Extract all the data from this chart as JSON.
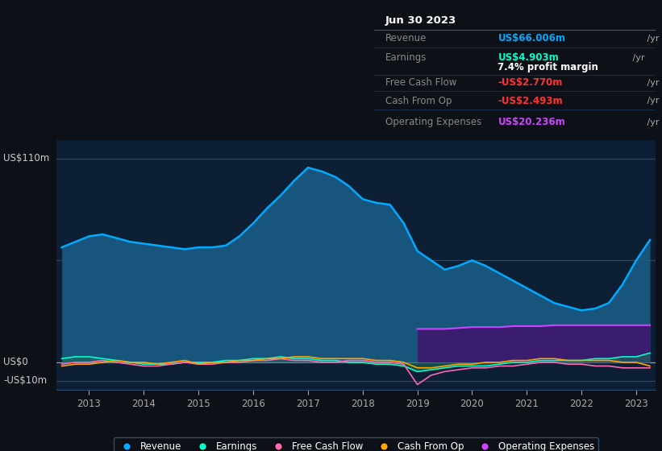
{
  "bg_color": "#0d1117",
  "plot_bg_color": "#0d1f35",
  "title_date": "Jun 30 2023",
  "info_box": {
    "Revenue": {
      "value": "US$66.006m",
      "color": "#00aaff"
    },
    "Earnings": {
      "value": "US$4.903m",
      "color": "#00ffcc"
    },
    "profit_margin": "7.4% profit margin",
    "Free Cash Flow": {
      "value": "-US$2.770m",
      "color": "#ff3333"
    },
    "Cash From Op": {
      "value": "-US$2.493m",
      "color": "#ff3333"
    },
    "Operating Expenses": {
      "value": "US$20.236m",
      "color": "#cc44ff"
    }
  },
  "years": [
    2012.5,
    2012.75,
    2013.0,
    2013.25,
    2013.5,
    2013.75,
    2014.0,
    2014.25,
    2014.5,
    2014.75,
    2015.0,
    2015.25,
    2015.5,
    2015.75,
    2016.0,
    2016.25,
    2016.5,
    2016.75,
    2017.0,
    2017.25,
    2017.5,
    2017.75,
    2018.0,
    2018.25,
    2018.5,
    2018.75,
    2019.0,
    2019.25,
    2019.5,
    2019.75,
    2020.0,
    2020.25,
    2020.5,
    2020.75,
    2021.0,
    2021.25,
    2021.5,
    2021.75,
    2022.0,
    2022.25,
    2022.5,
    2022.75,
    2023.0,
    2023.25
  ],
  "revenue": [
    62,
    65,
    68,
    69,
    67,
    65,
    64,
    63,
    62,
    61,
    62,
    62,
    63,
    68,
    75,
    83,
    90,
    98,
    105,
    103,
    100,
    95,
    88,
    86,
    85,
    75,
    60,
    55,
    50,
    52,
    55,
    52,
    48,
    44,
    40,
    36,
    32,
    30,
    28,
    29,
    32,
    42,
    55,
    66
  ],
  "earnings": [
    2,
    3,
    3,
    2,
    1,
    0,
    -1,
    -1,
    -1,
    0,
    0,
    0,
    1,
    1,
    2,
    2,
    3,
    2,
    2,
    1,
    1,
    0,
    0,
    -1,
    -1,
    -2,
    -5,
    -4,
    -3,
    -2,
    -2,
    -2,
    -1,
    0,
    0,
    1,
    1,
    1,
    1,
    2,
    2,
    3,
    3,
    5
  ],
  "free_cash_flow": [
    -1,
    0,
    0,
    1,
    0,
    -1,
    -2,
    -2,
    -1,
    0,
    -1,
    -1,
    0,
    0,
    1,
    1,
    2,
    1,
    1,
    0,
    0,
    1,
    1,
    0,
    0,
    -1,
    -12,
    -7,
    -5,
    -4,
    -3,
    -3,
    -2,
    -2,
    -1,
    0,
    0,
    -1,
    -1,
    -2,
    -2,
    -3,
    -3,
    -3
  ],
  "cash_from_op": [
    -2,
    -1,
    -1,
    0,
    1,
    0,
    0,
    -1,
    0,
    1,
    -1,
    0,
    0,
    1,
    1,
    2,
    2,
    3,
    3,
    2,
    2,
    2,
    2,
    1,
    1,
    0,
    -3,
    -3,
    -2,
    -1,
    -1,
    0,
    0,
    1,
    1,
    2,
    2,
    1,
    1,
    1,
    1,
    0,
    0,
    -2
  ],
  "op_exp_years": [
    2019.0,
    2019.25,
    2019.5,
    2019.75,
    2020.0,
    2020.25,
    2020.5,
    2020.75,
    2021.0,
    2021.25,
    2021.5,
    2021.75,
    2022.0,
    2022.25,
    2022.5,
    2022.75,
    2023.0,
    2023.25
  ],
  "op_exp_vals": [
    18,
    18,
    18,
    18.5,
    19,
    19,
    19,
    19.5,
    19.5,
    19.5,
    20,
    20,
    20,
    20,
    20,
    20,
    20,
    20
  ],
  "legend": [
    {
      "label": "Revenue",
      "color": "#00aaff"
    },
    {
      "label": "Earnings",
      "color": "#00ffcc"
    },
    {
      "label": "Free Cash Flow",
      "color": "#ff69b4"
    },
    {
      "label": "Cash From Op",
      "color": "#ffa500"
    },
    {
      "label": "Operating Expenses",
      "color": "#cc44ff"
    }
  ]
}
